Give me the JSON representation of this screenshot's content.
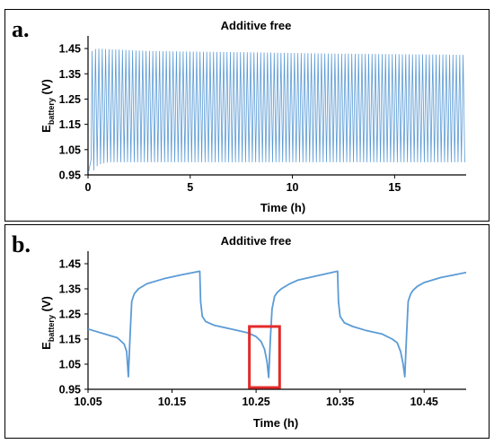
{
  "figure": {
    "panel_labels": [
      "a.",
      "b."
    ]
  },
  "chart_data": [
    {
      "type": "line",
      "title": "Additive free",
      "xlabel": "Time (h)",
      "ylabel": {
        "main": "E",
        "sub": "battery",
        "unit": " (V)"
      },
      "xlim": [
        0,
        18.5
      ],
      "ylim": [
        0.95,
        1.5
      ],
      "x_ticks": [
        0,
        5,
        10,
        15
      ],
      "x_tick_labels": [
        "0",
        "5",
        "10",
        "15"
      ],
      "y_ticks": [
        0.95,
        1.05,
        1.15,
        1.25,
        1.35,
        1.45
      ],
      "y_tick_labels": [
        "0.95",
        "1.05",
        "1.15",
        "1.25",
        "1.35",
        "1.45"
      ],
      "grid": false,
      "legend": "none",
      "color": "#5b9bd5",
      "series": [
        {
          "cycle_period_h": 0.165,
          "cycle_start_h": 0.2,
          "x_end_h": 18.4,
          "envelope": {
            "max_x": [
              0.2,
              0.4,
              3,
              8,
              12,
              18.4
            ],
            "max_y": [
              1.44,
              1.45,
              1.44,
              1.435,
              1.43,
              1.425
            ],
            "min_x": [
              0.2,
              0.5,
              1,
              3,
              10,
              18.4
            ],
            "min_y": [
              0.96,
              0.99,
              1.0,
              1.0,
              1.0,
              1.0
            ]
          }
        }
      ]
    },
    {
      "type": "line",
      "title": "Additive free",
      "xlabel": "Time (h)",
      "ylabel": {
        "main": "E",
        "sub": "battery",
        "unit": " (V)"
      },
      "xlim": [
        10.05,
        10.5
      ],
      "ylim": [
        0.95,
        1.5
      ],
      "x_ticks": [
        10.05,
        10.15,
        10.25,
        10.35,
        10.45
      ],
      "x_tick_labels": [
        "10.05",
        "10.15",
        "10.25",
        "10.35",
        "10.45"
      ],
      "y_ticks": [
        0.95,
        1.05,
        1.15,
        1.25,
        1.35,
        1.45
      ],
      "y_tick_labels": [
        "0.95",
        "1.05",
        "1.15",
        "1.25",
        "1.35",
        "1.45"
      ],
      "grid": false,
      "legend": "none",
      "color": "#5b9bd5",
      "highlight": {
        "color": "#e32b2b",
        "x": [
          10.242,
          10.278
        ],
        "y": [
          0.957,
          1.2
        ]
      },
      "series": [
        {
          "x": [
            10.05,
            10.07,
            10.085,
            10.093,
            10.096,
            10.098,
            10.1,
            10.102,
            10.105,
            10.11,
            10.12,
            10.14,
            10.16,
            10.183,
            10.184,
            10.186,
            10.19,
            10.2,
            10.22,
            10.24,
            10.25,
            10.256,
            10.26,
            10.263,
            10.265,
            10.267,
            10.269,
            10.272,
            10.275,
            10.28,
            10.29,
            10.3,
            10.32,
            10.347,
            10.348,
            10.35,
            10.355,
            10.365,
            10.38,
            10.4,
            10.412,
            10.418,
            10.422,
            10.425,
            10.427,
            10.429,
            10.431,
            10.434,
            10.437,
            10.442,
            10.45,
            10.47,
            10.5
          ],
          "y": [
            1.19,
            1.17,
            1.155,
            1.13,
            1.1,
            1.0,
            1.16,
            1.3,
            1.33,
            1.35,
            1.37,
            1.39,
            1.405,
            1.42,
            1.3,
            1.24,
            1.22,
            1.205,
            1.19,
            1.175,
            1.16,
            1.14,
            1.11,
            1.06,
            0.997,
            1.15,
            1.27,
            1.32,
            1.335,
            1.35,
            1.37,
            1.385,
            1.4,
            1.42,
            1.3,
            1.24,
            1.215,
            1.2,
            1.185,
            1.17,
            1.15,
            1.135,
            1.1,
            1.05,
            1.0,
            1.16,
            1.3,
            1.33,
            1.345,
            1.36,
            1.375,
            1.395,
            1.415
          ]
        }
      ]
    }
  ]
}
